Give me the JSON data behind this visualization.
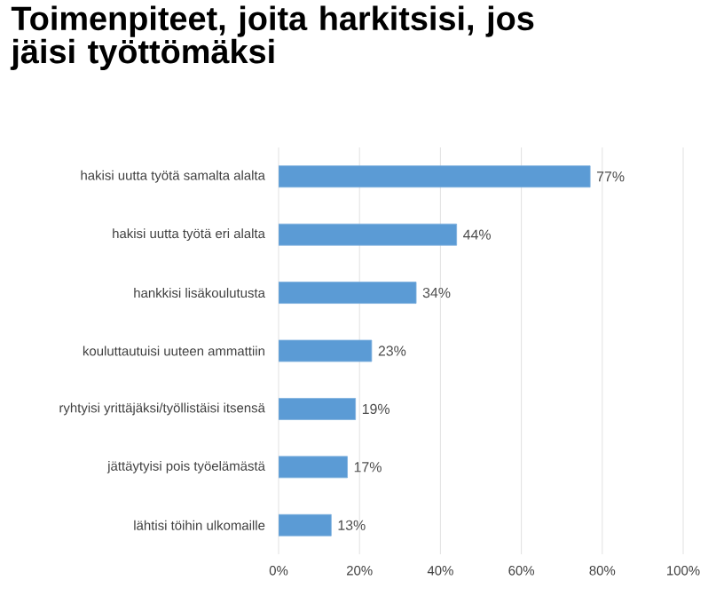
{
  "chart_data": {
    "type": "bar",
    "orientation": "horizontal",
    "title": "Toimenpiteet, joita harkitsisi, jos jäisi työttömäksi",
    "categories": [
      "hakisi uutta työtä samalta alalta",
      "hakisi uutta työtä eri alalta",
      "hankkisi lisäkoulutusta",
      "kouluttautuisi uuteen ammattiin",
      "ryhtyisi yrittäjäksi/työllistäisi itsensä",
      "jättäytyisi pois työelämästä",
      "lähtisi töihin ulkomaille"
    ],
    "values": [
      77,
      44,
      34,
      23,
      19,
      17,
      13
    ],
    "value_labels": [
      "77%",
      "44%",
      "34%",
      "23%",
      "19%",
      "17%",
      "13%"
    ],
    "color": "#5b9bd5",
    "xlim": [
      0,
      100
    ],
    "xticks": [
      {
        "value": 0,
        "label": "0%"
      },
      {
        "value": 20,
        "label": "20%"
      },
      {
        "value": 40,
        "label": "40%"
      },
      {
        "value": 60,
        "label": "60%"
      },
      {
        "value": 80,
        "label": "80%"
      },
      {
        "value": 100,
        "label": "100%"
      }
    ],
    "grid": "x"
  }
}
